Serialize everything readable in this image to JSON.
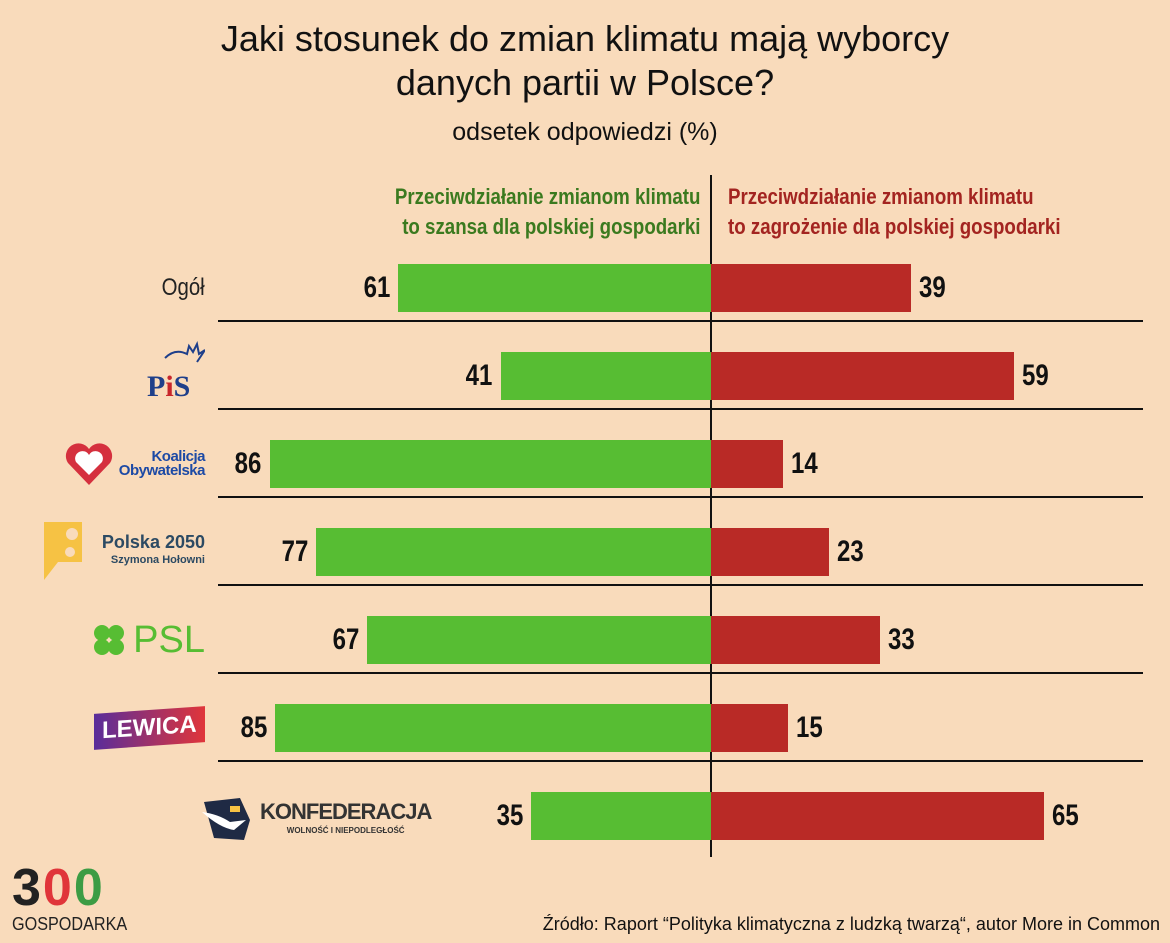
{
  "chart_data": {
    "type": "bar",
    "title": "Jaki stosunek do zmian klimatu mają wyborcy danych partii w Polsce?",
    "title_lines": [
      "Jaki stosunek do zmian klimatu mają wyborcy",
      "danych partii w Polsce?"
    ],
    "subtitle": "odsetek odpowiedzi (%)",
    "orientation": "horizontal-diverging",
    "categories": [
      "Ogół",
      "PiS",
      "Koalicja Obywatelska",
      "Polska 2050 Szymona Hołowni",
      "PSL",
      "Lewica",
      "Konfederacja Wolność i Niepodległość"
    ],
    "series": [
      {
        "name": "Przeciwdziałanie zmianom klimatu to szansa dla polskiej gospodarki",
        "name_lines": [
          "Przeciwdziałanie zmianom klimatu",
          "to szansa dla polskiej gospodarki"
        ],
        "color": "#57bd33",
        "values": [
          61,
          41,
          86,
          77,
          67,
          85,
          35
        ]
      },
      {
        "name": "Przeciwdziałanie zmianom klimatu to zagrożenie dla polskiej gospodarki",
        "name_lines": [
          "Przeciwdziałanie zmianom klimatu",
          "to zagrożenie dla polskiej gospodarki"
        ],
        "color": "#b92a26",
        "values": [
          39,
          59,
          14,
          23,
          33,
          15,
          65
        ]
      }
    ],
    "grid": false,
    "legend": "top"
  },
  "logos": {
    "pis": "PiS",
    "ko": [
      "Koalicja",
      "Obywatelska"
    ],
    "p2050": [
      "Polska 2050",
      "Szymona Hołowni"
    ],
    "psl": "PSL",
    "lewica": "LEWICA",
    "konf": [
      "KONFEDERACJA",
      "WOLNOŚĆ I NIEPODLEGŁOŚĆ"
    ]
  },
  "brand": {
    "digits": "300",
    "name": "GOSPODARKA"
  },
  "source": "Źródło: Raport “Polityka klimatyczna z ludzką twarzą“, autor More in Common"
}
